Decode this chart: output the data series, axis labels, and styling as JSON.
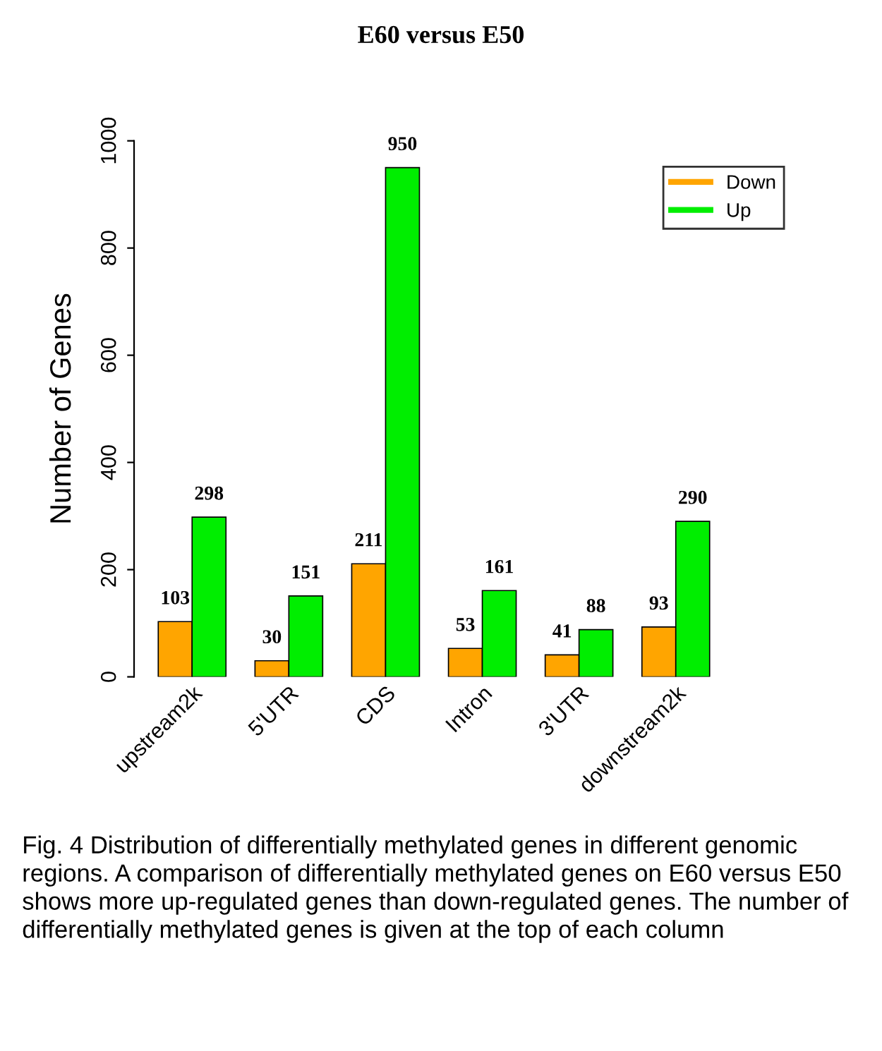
{
  "chart_data": {
    "type": "bar",
    "title": "E60 versus E50",
    "ylabel": "Number of Genes",
    "categories": [
      "upstream2k",
      "5'UTR",
      "CDS",
      "Intron",
      "3'UTR",
      "downstream2k"
    ],
    "series": [
      {
        "name": "Down",
        "color": "#ffa500",
        "values": [
          103,
          30,
          211,
          53,
          41,
          93
        ]
      },
      {
        "name": "Up",
        "color": "#00ee00",
        "values": [
          298,
          151,
          950,
          161,
          88,
          290
        ]
      }
    ],
    "ylim": [
      0,
      1000
    ],
    "yticks": [
      0,
      200,
      400,
      600,
      800,
      1000
    ],
    "grid": false,
    "legend": "top right",
    "data_labels": true,
    "annotations": [
      "Fig. 4 Distribution of differentially methylated genes in different genomic regions. A comparison of differentially methylated genes on E60 versus E50 shows more up-regulated genes than down-regulated genes. The number of differentially methylated genes is given at the top of each column"
    ]
  }
}
